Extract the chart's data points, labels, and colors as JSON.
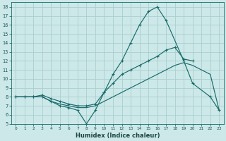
{
  "xlabel": "Humidex (Indice chaleur)",
  "background_color": "#cce8e8",
  "grid_color": "#aacece",
  "line_color": "#1a6b6b",
  "xlim": [
    -0.5,
    23.5
  ],
  "ylim": [
    5,
    18.5
  ],
  "xticks": [
    0,
    1,
    2,
    3,
    4,
    5,
    6,
    7,
    8,
    9,
    10,
    11,
    12,
    13,
    14,
    15,
    16,
    17,
    18,
    19,
    20,
    21,
    22,
    23
  ],
  "yticks": [
    5,
    6,
    7,
    8,
    9,
    10,
    11,
    12,
    13,
    14,
    15,
    16,
    17,
    18
  ],
  "s1_x": [
    0,
    1,
    2,
    3,
    4,
    5,
    6,
    7,
    8,
    9,
    10,
    11,
    12,
    13,
    14,
    15,
    16,
    17,
    19,
    20,
    22,
    23
  ],
  "s1_y": [
    8.0,
    8.0,
    8.0,
    8.0,
    7.5,
    7.0,
    6.8,
    6.5,
    5.0,
    6.5,
    8.5,
    10.5,
    12.0,
    14.0,
    16.0,
    17.5,
    18.0,
    16.5,
    12.0,
    9.5,
    8.0,
    6.5
  ],
  "s2_x": [
    0,
    1,
    2,
    3,
    4,
    5,
    6,
    7,
    8,
    9,
    10,
    11,
    12,
    13,
    14,
    15,
    16,
    17,
    18,
    19,
    20
  ],
  "s2_y": [
    8.0,
    8.0,
    8.0,
    8.2,
    7.8,
    7.5,
    7.2,
    7.0,
    7.0,
    7.2,
    8.5,
    9.5,
    10.5,
    11.0,
    11.5,
    12.0,
    12.5,
    13.2,
    13.5,
    12.2,
    12.0
  ],
  "s3_x": [
    0,
    1,
    2,
    3,
    4,
    5,
    6,
    7,
    8,
    9,
    10,
    11,
    12,
    13,
    14,
    15,
    16,
    17,
    18,
    19,
    20,
    21,
    22,
    23
  ],
  "s3_y": [
    8.0,
    8.0,
    8.0,
    8.0,
    7.5,
    7.2,
    7.0,
    6.8,
    6.8,
    7.0,
    7.5,
    8.0,
    8.5,
    9.0,
    9.5,
    10.0,
    10.5,
    11.0,
    11.5,
    11.8,
    11.5,
    11.0,
    10.5,
    6.5
  ]
}
